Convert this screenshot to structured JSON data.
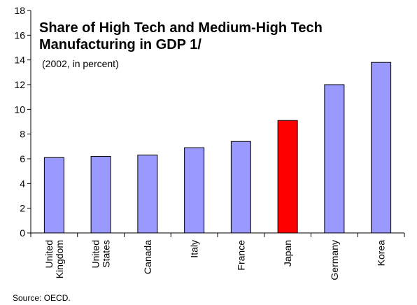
{
  "chart_data": {
    "type": "bar",
    "title_line1": "Share of High Tech and Medium-High Tech",
    "title_line2": "Manufacturing in GDP 1/",
    "subtitle": "(2002, in percent)",
    "categories": [
      [
        "United",
        "Kingdom"
      ],
      [
        "United",
        "States"
      ],
      [
        "Canada"
      ],
      [
        "Italy"
      ],
      [
        "France"
      ],
      [
        "Japan"
      ],
      [
        "Germany"
      ],
      [
        "Korea"
      ]
    ],
    "values": [
      6.1,
      6.2,
      6.3,
      6.9,
      7.4,
      9.1,
      12.0,
      13.8
    ],
    "highlight_index": 5,
    "ylim": [
      0,
      18
    ],
    "yticks": [
      0,
      2,
      4,
      6,
      8,
      10,
      12,
      14,
      16,
      18
    ],
    "grid": false,
    "legend": "none",
    "colors": {
      "bar": "#9999ff",
      "highlight": "#ff0000",
      "bar_outline": "#000000"
    }
  },
  "footer": {
    "source": "Source: OECD."
  }
}
